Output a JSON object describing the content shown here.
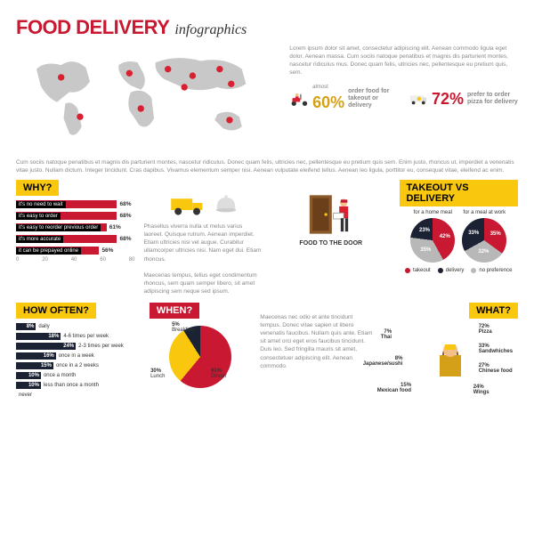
{
  "title": {
    "main": "FOOD DELIVERY",
    "sub": "infographics",
    "main_color": "#c91831"
  },
  "colors": {
    "red": "#c91831",
    "yellow": "#f9c80e",
    "dark": "#1a2233",
    "grey": "#b8b8b8",
    "gold": "#d4a017",
    "map": "#c8c8c8",
    "pin": "#d92030"
  },
  "intro_text": "Lorem ipsum dolor sit amet, consectetur adipiscing elit. Aenean commodo ligula eget dolor. Aenean massa. Cum sociis natoque penatibus et magnis dis parturient montes, nascetur ridiculus mus. Donec quam felis, ultricies nec, pellentesque eu pretium quis, sem.",
  "stats": [
    {
      "prefix": "almost",
      "value": "60%",
      "label": "order food for takeout or delivery",
      "color": "#d4a017"
    },
    {
      "prefix": "",
      "value": "72%",
      "label": "prefer to order pizza for delivery",
      "color": "#c91831"
    }
  ],
  "body1": "Cum sociis natoque penatibus et magnis dis parturient montes, nascetur ridiculus. Donec quam felis, ultricies nec, pellentesque eu pretium quis sem. Enim justo, rhoncus ut, imperdiet a venenatis vitae justo. Nullam dictum. Integer tincidunt. Cras dapibus. Vivamus elementum semper nisi. Aenean vulputate eleifend tellus. Aenean leo ligula, porttitor eu, consequat vitae, eleifend ac enim.",
  "why": {
    "heading": "WHY?",
    "banner_color": "#f9c80e",
    "bars": [
      {
        "label": "it's no need to wait",
        "value": 68
      },
      {
        "label": "it's easy to order",
        "value": 68
      },
      {
        "label": "it's easy to reorder previous order",
        "value": 61
      },
      {
        "label": "it's more accurate",
        "value": 68
      },
      {
        "label": "it can be prepayed online",
        "value": 56
      }
    ],
    "bar_color": "#c91831",
    "max": 80,
    "ticks": [
      0,
      20,
      40,
      60,
      80
    ]
  },
  "mid_text": "Phasellus viverra nulla ut metus varius laoreet. Quisque rutrum. Aenean imperdiet. Etiam ultricies nisi vel augue. Curabitur ullamcorper ultricies nisi. Nam eget dui. Etiam rhoncus.\n\nMaecenas tempus, tellus eget condimentum rhoncus, sem quam semper libero, sit amet adipiscing sem neque sed ipsum.",
  "door_caption": "FOOD TO THE DOOR",
  "vs": {
    "heading": "TAKEOUT VS DELIVERY",
    "banner_color": "#f9c80e",
    "pies": [
      {
        "title": "for a home meal",
        "slices": [
          {
            "label": "takeout",
            "value": 42,
            "color": "#c91831"
          },
          {
            "label": "no preference",
            "value": 35,
            "color": "#b8b8b8"
          },
          {
            "label": "delivery",
            "value": 23,
            "color": "#1a2233"
          }
        ]
      },
      {
        "title": "for a meal at work",
        "slices": [
          {
            "label": "takeout",
            "value": 35,
            "color": "#c91831"
          },
          {
            "label": "no preference",
            "value": 32,
            "color": "#b8b8b8"
          },
          {
            "label": "delivery",
            "value": 33,
            "color": "#1a2233"
          }
        ]
      }
    ],
    "legend": [
      {
        "label": "takeout",
        "color": "#c91831"
      },
      {
        "label": "delivery",
        "color": "#1a2233"
      },
      {
        "label": "no preference",
        "color": "#b8b8b8"
      }
    ]
  },
  "how": {
    "heading": "HOW OFTEN?",
    "banner_color": "#f9c80e",
    "bars": [
      {
        "label": "daily",
        "value": 8
      },
      {
        "label": "4-6 times per week",
        "value": 18
      },
      {
        "label": "2-3 times per week",
        "value": 24
      },
      {
        "label": "once in a week",
        "value": 16
      },
      {
        "label": "once in a 2 weeks",
        "value": 15
      },
      {
        "label": "once a month",
        "value": 10
      },
      {
        "label": "less than once a month",
        "value": 10
      },
      {
        "label": "never",
        "value": 0
      }
    ],
    "bar_color": "#1a2233",
    "max": 30
  },
  "when": {
    "heading": "WHEN?",
    "banner_color": "#c91831",
    "slices": [
      {
        "label": "Dinner",
        "value": 61,
        "color": "#c91831"
      },
      {
        "label": "Lunch",
        "value": 30,
        "color": "#f9c80e"
      },
      {
        "label": "Breakfast",
        "value": 5,
        "color": "#1a2233"
      }
    ]
  },
  "what_text": "Maecenas nec odio et ante tincidunt tempus. Donec vitae sapien ut libero venenatis faucibus. Nullam quis ante. Etiam sit amet orci eget eros faucibus tincidunt. Duis leo. Sed fringilla mauris sit amet, consectetuer adipiscing elit. Aenean commodo.",
  "what": {
    "heading": "WHAT?",
    "banner_color": "#f9c80e",
    "items_left": [
      {
        "label": "Thai",
        "value": "7%"
      },
      {
        "label": "Japanese/sushi",
        "value": "8%"
      },
      {
        "label": "Mexican food",
        "value": "15%"
      }
    ],
    "items_right": [
      {
        "label": "Pizza",
        "value": "72%"
      },
      {
        "label": "Sandwhiches",
        "value": "33%"
      },
      {
        "label": "Chinese food",
        "value": "27%"
      },
      {
        "label": "Wings",
        "value": "24%"
      }
    ]
  }
}
